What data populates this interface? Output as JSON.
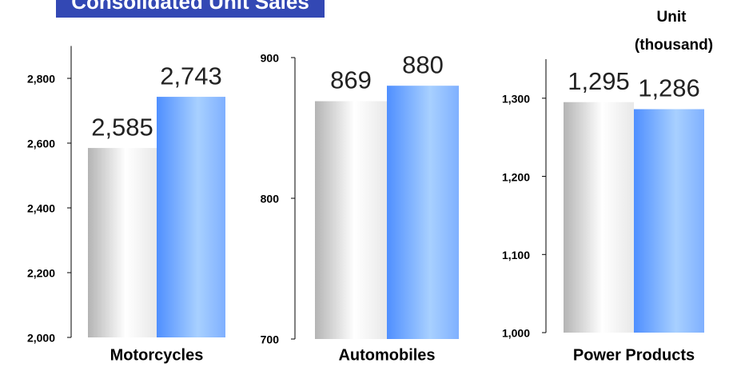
{
  "header": {
    "title": "Consolidated Unit Sales",
    "unit": [
      "Unit",
      "(thousand)"
    ]
  },
  "chart_data": [
    {
      "type": "bar",
      "xlabel": "Motorcycles",
      "categories": [
        null,
        null
      ],
      "values": [
        2585,
        2743
      ],
      "value_labels": [
        "2,585",
        "2,743"
      ],
      "colors": [
        "#b4b4b4",
        "#4f8fff"
      ],
      "ylim": [
        2000,
        2900
      ],
      "yticks": [
        {
          "value": 2000,
          "label": "2,000"
        },
        {
          "value": 2200,
          "label": "2,200"
        },
        {
          "value": 2400,
          "label": "2,400"
        },
        {
          "value": 2600,
          "label": "2,600"
        },
        {
          "value": 2800,
          "label": "2,800"
        }
      ]
    },
    {
      "type": "bar",
      "xlabel": "Automobiles",
      "categories": [
        null,
        null
      ],
      "values": [
        869,
        880
      ],
      "colors": [
        "#b4b4b4",
        "#4f8fff"
      ],
      "ylim": [
        700,
        900
      ],
      "yticks": [
        700,
        800,
        900
      ]
    },
    {
      "type": "bar",
      "xlabel": "Power Products",
      "categories": [
        null,
        null
      ],
      "values": [
        1295,
        1286
      ],
      "value_labels": [
        "1,295",
        "1,286"
      ],
      "colors": [
        "#b4b4b4",
        "#4f8fff"
      ],
      "ylim": [
        1000,
        1350
      ],
      "yticks": [
        {
          "value": 1000,
          "label": "1,000"
        },
        {
          "value": 1100,
          "label": "1,100"
        },
        {
          "value": 1200,
          "label": "1,200"
        },
        {
          "value": 1300,
          "label": "1,300"
        }
      ]
    }
  ]
}
